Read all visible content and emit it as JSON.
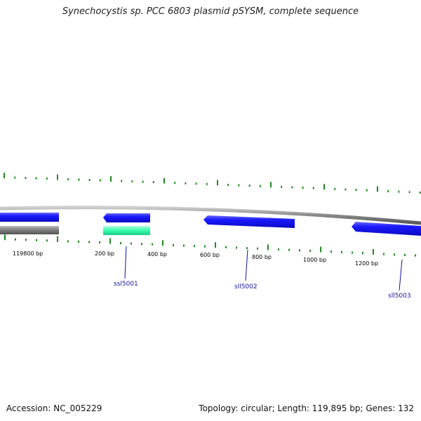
{
  "title": "Synechocystis sp. PCC 6803 plasmid pSYSM, complete sequence",
  "footer": {
    "accession": "Accession: NC_005229",
    "summary": "Topology: circular; Length: 119,895 bp; Genes: 132"
  },
  "colors": {
    "gene_forward": "#1a1aff",
    "gene_reverse": "#1a1aff",
    "rna": "#33ffaa",
    "backbone": "#888888",
    "tick": "#1e8a1e",
    "gene_label": "#1010a0"
  },
  "ruler": {
    "labels": [
      "119800 bp",
      "200 bp",
      "400 bp",
      "600 bp",
      "800 bp",
      "1000 bp",
      "1200 bp"
    ]
  },
  "genes": [
    {
      "name": "ssl5001"
    },
    {
      "name": "sll5002"
    },
    {
      "name": "sll5003"
    }
  ]
}
